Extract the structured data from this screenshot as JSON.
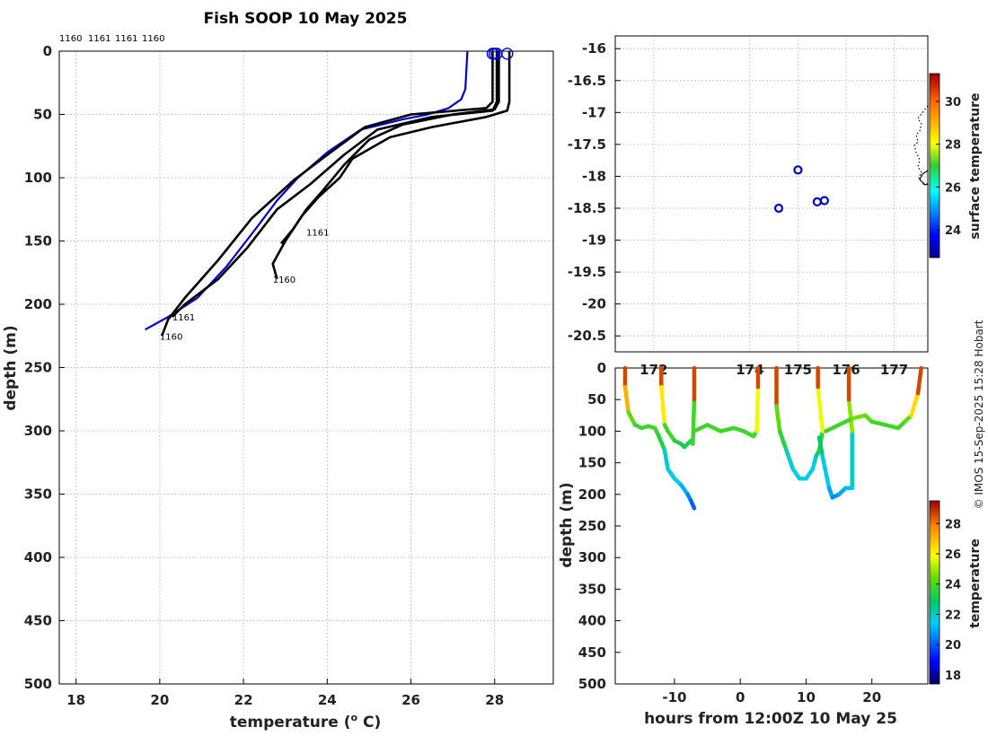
{
  "title": "Fish SOOP 10 May 2025",
  "credit": "© IMOS 15-Sep-2025 15:28 Hobart",
  "chart_data": [
    {
      "id": "profile",
      "type": "line",
      "xlabel": "temperature (° C)",
      "xlabel_main": "temperature (",
      "xlabel_sup": "o",
      "xlabel_end": " C)",
      "ylabel": "depth (m)",
      "xlim": [
        17.6,
        29.4
      ],
      "ylim": [
        500,
        0
      ],
      "xticks": [
        18,
        20,
        22,
        24,
        26,
        28
      ],
      "yticks": [
        0,
        50,
        100,
        150,
        200,
        250,
        300,
        350,
        400,
        450,
        500
      ],
      "top_labels": [
        "1160",
        "1161",
        "1161",
        "1160"
      ],
      "annotations": [
        {
          "text": "1161",
          "x": 23.5,
          "y": 143
        },
        {
          "text": "1160",
          "x": 22.7,
          "y": 180
        },
        {
          "text": "1161",
          "x": 20.3,
          "y": 210
        },
        {
          "text": "1160",
          "x": 20.0,
          "y": 225
        }
      ],
      "series": [
        {
          "name": "climatology",
          "color": "#0000cc",
          "points": [
            [
              27.35,
              0
            ],
            [
              27.3,
              30
            ],
            [
              27.2,
              38
            ],
            [
              26.9,
              45
            ],
            [
              26.4,
              50
            ],
            [
              25.8,
              54
            ],
            [
              24.8,
              62
            ],
            [
              24.0,
              80
            ],
            [
              23.3,
              100
            ],
            [
              22.8,
              118
            ],
            [
              22.3,
              140
            ],
            [
              21.6,
              170
            ],
            [
              20.9,
              195
            ],
            [
              20.2,
              210
            ],
            [
              19.65,
              220
            ]
          ]
        },
        {
          "name": "profile-1",
          "color": "#000000",
          "points": [
            [
              28.35,
              0
            ],
            [
              28.35,
              40
            ],
            [
              28.3,
              47
            ],
            [
              27.8,
              52
            ],
            [
              26.5,
              60
            ],
            [
              25.5,
              68
            ],
            [
              24.6,
              85
            ],
            [
              24.3,
              100
            ],
            [
              23.8,
              115
            ],
            [
              23.4,
              130
            ],
            [
              23.0,
              150
            ],
            [
              22.7,
              168
            ],
            [
              22.8,
              180
            ]
          ]
        },
        {
          "name": "profile-2",
          "color": "#000000",
          "points": [
            [
              28.1,
              0
            ],
            [
              28.1,
              40
            ],
            [
              28.0,
              46
            ],
            [
              27.0,
              50
            ],
            [
              25.8,
              58
            ],
            [
              25.0,
              70
            ],
            [
              24.4,
              90
            ],
            [
              23.9,
              110
            ],
            [
              23.5,
              125
            ],
            [
              23.2,
              140
            ],
            [
              22.9,
              152
            ]
          ]
        },
        {
          "name": "profile-3",
          "color": "#000000",
          "points": [
            [
              28.05,
              0
            ],
            [
              28.05,
              40
            ],
            [
              27.95,
              47
            ],
            [
              26.5,
              52
            ],
            [
              25.2,
              62
            ],
            [
              24.4,
              82
            ],
            [
              23.6,
              105
            ],
            [
              22.8,
              125
            ],
            [
              22.1,
              155
            ],
            [
              21.4,
              180
            ],
            [
              20.6,
              200
            ],
            [
              20.3,
              210
            ]
          ]
        },
        {
          "name": "profile-4",
          "color": "#000000",
          "points": [
            [
              27.95,
              0
            ],
            [
              27.95,
              40
            ],
            [
              27.8,
              45
            ],
            [
              26.0,
              50
            ],
            [
              24.9,
              60
            ],
            [
              24.0,
              82
            ],
            [
              23.2,
              102
            ],
            [
              22.2,
              132
            ],
            [
              21.4,
              165
            ],
            [
              20.6,
              195
            ],
            [
              20.2,
              212
            ],
            [
              20.05,
              225
            ]
          ]
        }
      ],
      "surface_markers": [
        [
          28.0,
          2
        ],
        [
          28.05,
          2
        ],
        [
          28.3,
          2
        ],
        [
          27.95,
          2
        ]
      ]
    },
    {
      "id": "map",
      "type": "scatter",
      "xlim": [
        171.2,
        177.7
      ],
      "ylim": [
        -20.75,
        -15.8
      ],
      "xticks": [
        172,
        174,
        175,
        176,
        177
      ],
      "xtick_labels": [
        "172",
        "174",
        "175",
        "176",
        "177"
      ],
      "yticks": [
        -16,
        -16.5,
        -17,
        -17.5,
        -18,
        -18.5,
        -19,
        -19.5,
        -20,
        -20.5
      ],
      "ytick_labels": [
        "-16",
        "-16.5",
        "-17",
        "-17.5",
        "-18",
        "-18.5",
        "-19",
        "-19.5",
        "-20",
        "-20.5"
      ],
      "points": [
        [
          174.6,
          -18.5
        ],
        [
          175.0,
          -17.9
        ],
        [
          175.4,
          -18.4
        ],
        [
          175.55,
          -18.38
        ]
      ],
      "colorbar": {
        "label": "surface temperature",
        "min": 22.7,
        "max": 31.3,
        "ticks": [
          24,
          26,
          28,
          30
        ]
      }
    },
    {
      "id": "section",
      "type": "line",
      "xlabel": "hours from 12:00Z 10 May 25",
      "ylabel": "depth (m)",
      "xlim": [
        -19,
        28.5
      ],
      "ylim": [
        500,
        0
      ],
      "xticks": [
        -10,
        0,
        10,
        20
      ],
      "yticks": [
        0,
        50,
        100,
        150,
        200,
        250,
        300,
        350,
        400,
        450,
        500
      ],
      "series": [
        {
          "name": "cast-a",
          "points": [
            [
              -17.5,
              0
            ],
            [
              -17.5,
              30
            ],
            [
              -17.0,
              70
            ],
            [
              -16.0,
              90
            ],
            [
              -15,
              95
            ],
            [
              -14,
              92
            ],
            [
              -13,
              95
            ],
            [
              -12.5,
              105
            ],
            [
              -11.5,
              130
            ],
            [
              -11,
              160
            ],
            [
              -10,
              175
            ],
            [
              -9,
              185
            ],
            [
              -8,
              200
            ],
            [
              -7.5,
              210
            ],
            [
              -7,
              222
            ]
          ]
        },
        {
          "name": "cast-b",
          "points": [
            [
              -12,
              0
            ],
            [
              -12,
              30
            ],
            [
              -11.5,
              90
            ],
            [
              -11,
              100
            ],
            [
              -10,
              115
            ],
            [
              -9,
              120
            ],
            [
              -8.5,
              125
            ],
            [
              -8,
              120
            ],
            [
              -7.5,
              115
            ],
            [
              -7.2,
              120
            ],
            [
              -7,
              50
            ],
            [
              -7,
              0
            ]
          ]
        },
        {
          "name": "cast-c",
          "points": [
            [
              -7,
              100
            ],
            [
              -5,
              90
            ],
            [
              -3,
              100
            ],
            [
              -1,
              95
            ],
            [
              0.5,
              100
            ],
            [
              2,
              108
            ],
            [
              2.5,
              100
            ],
            [
              2.7,
              30
            ],
            [
              2.7,
              0
            ]
          ]
        },
        {
          "name": "cast-d",
          "points": [
            [
              5.5,
              0
            ],
            [
              5.5,
              60
            ],
            [
              6,
              100
            ],
            [
              7,
              130
            ],
            [
              8,
              160
            ],
            [
              9,
              175
            ],
            [
              10,
              175
            ],
            [
              11,
              160
            ],
            [
              11.5,
              140
            ],
            [
              12,
              130
            ],
            [
              12.5,
              100
            ],
            [
              11.8,
              30
            ],
            [
              11.8,
              0
            ]
          ]
        },
        {
          "name": "cast-e",
          "points": [
            [
              12,
              110
            ],
            [
              12.5,
              140
            ],
            [
              13.5,
              190
            ],
            [
              14,
              205
            ],
            [
              15,
              200
            ],
            [
              16,
              190
            ],
            [
              17,
              190
            ],
            [
              17,
              100
            ],
            [
              16.5,
              50
            ],
            [
              16.5,
              0
            ]
          ]
        },
        {
          "name": "cast-f",
          "points": [
            [
              13,
              100
            ],
            [
              15,
              90
            ],
            [
              17,
              80
            ],
            [
              19,
              75
            ],
            [
              20,
              85
            ],
            [
              22,
              90
            ],
            [
              24,
              95
            ],
            [
              25,
              85
            ],
            [
              26,
              75
            ],
            [
              27,
              40
            ],
            [
              27.5,
              0
            ]
          ]
        }
      ],
      "colorbar": {
        "label": "temperature",
        "min": 17.4,
        "max": 29.5,
        "ticks": [
          18,
          20,
          22,
          24,
          26,
          28
        ]
      }
    }
  ]
}
